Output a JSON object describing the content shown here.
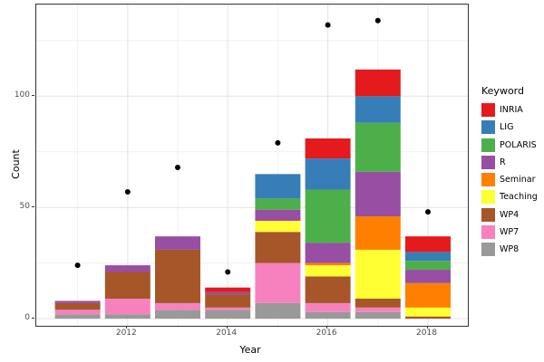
{
  "chart_data": {
    "type": "bar",
    "stacked": true,
    "xlabel": "Year",
    "ylabel": "Count",
    "legend_title": "Keyword",
    "legend_position": "right",
    "categories": [
      2011,
      2012,
      2013,
      2014,
      2015,
      2016,
      2017,
      2018
    ],
    "x_tick_labels": [
      "2012",
      "2014",
      "2016",
      "2018"
    ],
    "x_tick_years": [
      2012,
      2014,
      2016,
      2018
    ],
    "y_ticks": [
      0,
      50,
      100
    ],
    "y_minor_gridlines": [
      25,
      75,
      125
    ],
    "x_major_gridline_years": [
      2012,
      2014,
      2016,
      2018
    ],
    "x_minor_gridline_years": [
      2011,
      2013,
      2015,
      2017
    ],
    "ylim": [
      -3.2,
      141.2
    ],
    "grid": {
      "major_color": "#e3e3e3",
      "minor_color": "#f1f1f1"
    },
    "series": [
      {
        "name": "WP8",
        "color": "#999999",
        "values": [
          2,
          2,
          4,
          4,
          7,
          3,
          3,
          0
        ]
      },
      {
        "name": "WP7",
        "color": "#F781BF",
        "values": [
          2,
          7,
          3,
          1,
          18,
          4,
          2,
          0
        ]
      },
      {
        "name": "WP4",
        "color": "#A65628",
        "values": [
          3,
          12,
          24,
          6,
          14,
          12,
          4,
          1
        ]
      },
      {
        "name": "Teaching",
        "color": "#FFFF33",
        "values": [
          0,
          0,
          0,
          0,
          5,
          5,
          22,
          4
        ]
      },
      {
        "name": "Seminar",
        "color": "#FF7F00",
        "values": [
          0,
          0,
          0,
          0,
          0,
          1,
          15,
          11
        ]
      },
      {
        "name": "R",
        "color": "#984EA3",
        "values": [
          1,
          3,
          6,
          1,
          5,
          9,
          20,
          6
        ]
      },
      {
        "name": "POLARIS",
        "color": "#4DAF4A",
        "values": [
          0,
          0,
          0,
          0,
          5,
          24,
          22,
          4
        ]
      },
      {
        "name": "LIG",
        "color": "#377EB8",
        "values": [
          0,
          0,
          0,
          0,
          11,
          14,
          12,
          4
        ]
      },
      {
        "name": "INRIA",
        "color": "#E41A1C",
        "values": [
          0,
          0,
          0,
          2,
          0,
          9,
          12,
          7
        ]
      }
    ],
    "legend_order": [
      "INRIA",
      "LIG",
      "POLARIS",
      "R",
      "Seminar",
      "Teaching",
      "WP4",
      "WP7",
      "WP8"
    ],
    "points": {
      "color": "#000000",
      "values": [
        24,
        57,
        68,
        21,
        79,
        132,
        134,
        48
      ]
    }
  }
}
